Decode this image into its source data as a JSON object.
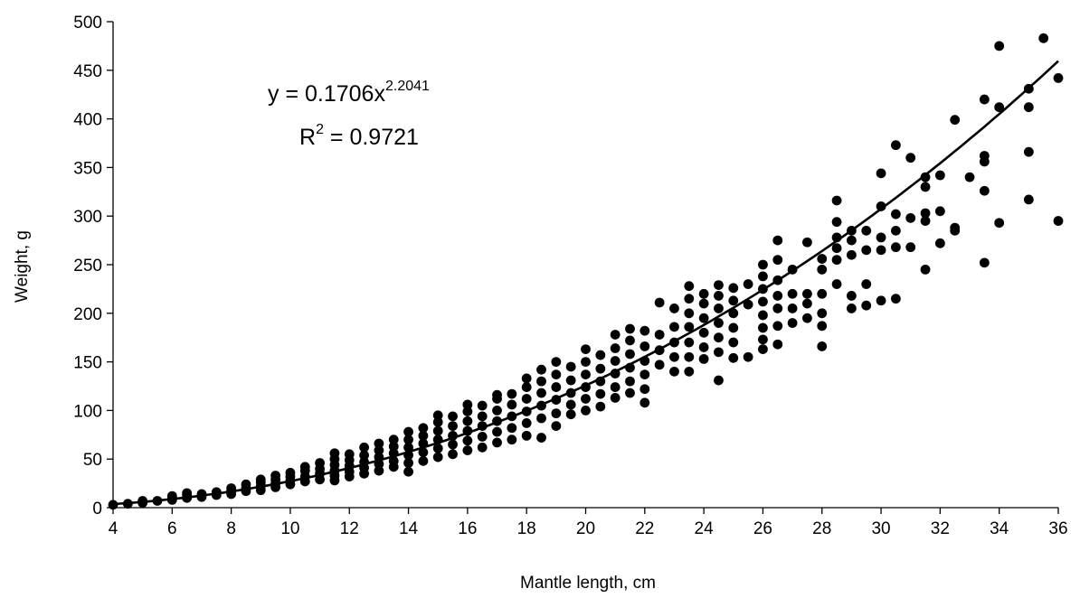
{
  "chart_data": {
    "type": "scatter",
    "xlabel": "Mantle length, cm",
    "ylabel": "Weight, g",
    "xlim": [
      4,
      36
    ],
    "ylim": [
      0,
      500
    ],
    "x_ticks": [
      4,
      6,
      8,
      10,
      12,
      14,
      16,
      18,
      20,
      22,
      24,
      26,
      28,
      30,
      32,
      34,
      36
    ],
    "y_ticks": [
      0,
      50,
      100,
      150,
      200,
      250,
      300,
      350,
      400,
      450,
      500
    ],
    "grid": false,
    "legend": "none",
    "marker_color": "#000000",
    "trendline": {
      "type": "power",
      "a": 0.1706,
      "b": 2.2041,
      "equation_prefix": "y = 0.1706x",
      "equation_exponent": "2.2041",
      "r2_prefix": "R",
      "r2_exponent": "2",
      "r2_suffix": " = 0.9721"
    },
    "points": [
      [
        4,
        3
      ],
      [
        4.5,
        4
      ],
      [
        5,
        5
      ],
      [
        5,
        7
      ],
      [
        5.5,
        7
      ],
      [
        6,
        8
      ],
      [
        6,
        10
      ],
      [
        6,
        12
      ],
      [
        6.5,
        10
      ],
      [
        6.5,
        13
      ],
      [
        6.5,
        15
      ],
      [
        7,
        11
      ],
      [
        7,
        14
      ],
      [
        7.5,
        13
      ],
      [
        7.5,
        16
      ],
      [
        8,
        14
      ],
      [
        8,
        17
      ],
      [
        8,
        20
      ],
      [
        8.5,
        17
      ],
      [
        8.5,
        20
      ],
      [
        8.5,
        24
      ],
      [
        9,
        18
      ],
      [
        9,
        22
      ],
      [
        9,
        26
      ],
      [
        9,
        29
      ],
      [
        9.5,
        21
      ],
      [
        9.5,
        25
      ],
      [
        9.5,
        29
      ],
      [
        9.5,
        33
      ],
      [
        10,
        24
      ],
      [
        10,
        28
      ],
      [
        10,
        32
      ],
      [
        10,
        36
      ],
      [
        10.5,
        27
      ],
      [
        10.5,
        32
      ],
      [
        10.5,
        38
      ],
      [
        10.5,
        42
      ],
      [
        11,
        29
      ],
      [
        11,
        35
      ],
      [
        11,
        40
      ],
      [
        11,
        46
      ],
      [
        11.5,
        28
      ],
      [
        11.5,
        33
      ],
      [
        11.5,
        38
      ],
      [
        11.5,
        44
      ],
      [
        11.5,
        50
      ],
      [
        11.5,
        56
      ],
      [
        12,
        32
      ],
      [
        12,
        37
      ],
      [
        12,
        43
      ],
      [
        12,
        49
      ],
      [
        12,
        55
      ],
      [
        12.5,
        35
      ],
      [
        12.5,
        41
      ],
      [
        12.5,
        47
      ],
      [
        12.5,
        54
      ],
      [
        12.5,
        62
      ],
      [
        13,
        38
      ],
      [
        13,
        45
      ],
      [
        13,
        52
      ],
      [
        13,
        59
      ],
      [
        13,
        66
      ],
      [
        13.5,
        42
      ],
      [
        13.5,
        48
      ],
      [
        13.5,
        56
      ],
      [
        13.5,
        63
      ],
      [
        13.5,
        70
      ],
      [
        14,
        37
      ],
      [
        14,
        46
      ],
      [
        14,
        54
      ],
      [
        14,
        62
      ],
      [
        14,
        70
      ],
      [
        14,
        78
      ],
      [
        14.5,
        48
      ],
      [
        14.5,
        57
      ],
      [
        14.5,
        66
      ],
      [
        14.5,
        74
      ],
      [
        14.5,
        82
      ],
      [
        15,
        52
      ],
      [
        15,
        61
      ],
      [
        15,
        70
      ],
      [
        15,
        79
      ],
      [
        15,
        88
      ],
      [
        15,
        95
      ],
      [
        15.5,
        55
      ],
      [
        15.5,
        65
      ],
      [
        15.5,
        74
      ],
      [
        15.5,
        84
      ],
      [
        15.5,
        94
      ],
      [
        16,
        59
      ],
      [
        16,
        69
      ],
      [
        16,
        79
      ],
      [
        16,
        89
      ],
      [
        16,
        99
      ],
      [
        16,
        106
      ],
      [
        16.5,
        62
      ],
      [
        16.5,
        73
      ],
      [
        16.5,
        84
      ],
      [
        16.5,
        94
      ],
      [
        16.5,
        105
      ],
      [
        17,
        67
      ],
      [
        17,
        78
      ],
      [
        17,
        89
      ],
      [
        17,
        100
      ],
      [
        17,
        112
      ],
      [
        17,
        116
      ],
      [
        17.5,
        70
      ],
      [
        17.5,
        82
      ],
      [
        17.5,
        94
      ],
      [
        17.5,
        106
      ],
      [
        17.5,
        117
      ],
      [
        18,
        74
      ],
      [
        18,
        87
      ],
      [
        18,
        99
      ],
      [
        18,
        112
      ],
      [
        18,
        124
      ],
      [
        18,
        133
      ],
      [
        18.5,
        72
      ],
      [
        18.5,
        92
      ],
      [
        18.5,
        105
      ],
      [
        18.5,
        118
      ],
      [
        18.5,
        130
      ],
      [
        18.5,
        142
      ],
      [
        19,
        84
      ],
      [
        19,
        97
      ],
      [
        19,
        111
      ],
      [
        19,
        124
      ],
      [
        19,
        137
      ],
      [
        19,
        150
      ],
      [
        19.5,
        96
      ],
      [
        19.5,
        106
      ],
      [
        19.5,
        118
      ],
      [
        19.5,
        131
      ],
      [
        19.5,
        145
      ],
      [
        20,
        100
      ],
      [
        20,
        112
      ],
      [
        20,
        124
      ],
      [
        20,
        137
      ],
      [
        20,
        150
      ],
      [
        20,
        163
      ],
      [
        20.5,
        104
      ],
      [
        20.5,
        117
      ],
      [
        20.5,
        130
      ],
      [
        20.5,
        143
      ],
      [
        20.5,
        157
      ],
      [
        21,
        113
      ],
      [
        21,
        124
      ],
      [
        21,
        138
      ],
      [
        21,
        151
      ],
      [
        21,
        164
      ],
      [
        21,
        178
      ],
      [
        21.5,
        118
      ],
      [
        21.5,
        130
      ],
      [
        21.5,
        144
      ],
      [
        21.5,
        158
      ],
      [
        21.5,
        172
      ],
      [
        21.5,
        184
      ],
      [
        22,
        108
      ],
      [
        22,
        122
      ],
      [
        22,
        137
      ],
      [
        22,
        151
      ],
      [
        22,
        166
      ],
      [
        22,
        182
      ],
      [
        22.5,
        147
      ],
      [
        22.5,
        162
      ],
      [
        22.5,
        178
      ],
      [
        22.5,
        211
      ],
      [
        23,
        140
      ],
      [
        23,
        155
      ],
      [
        23,
        170
      ],
      [
        23,
        186
      ],
      [
        23,
        205
      ],
      [
        23.5,
        140
      ],
      [
        23.5,
        155
      ],
      [
        23.5,
        170
      ],
      [
        23.5,
        186
      ],
      [
        23.5,
        200
      ],
      [
        23.5,
        215
      ],
      [
        23.5,
        228
      ],
      [
        24,
        153
      ],
      [
        24,
        165
      ],
      [
        24,
        180
      ],
      [
        24,
        195
      ],
      [
        24,
        210
      ],
      [
        24,
        220
      ],
      [
        24.5,
        131
      ],
      [
        24.5,
        160
      ],
      [
        24.5,
        175
      ],
      [
        24.5,
        190
      ],
      [
        24.5,
        205
      ],
      [
        24.5,
        218
      ],
      [
        24.5,
        229
      ],
      [
        25,
        154
      ],
      [
        25,
        170
      ],
      [
        25,
        185
      ],
      [
        25,
        200
      ],
      [
        25,
        213
      ],
      [
        25,
        226
      ],
      [
        25.5,
        155
      ],
      [
        25.5,
        209
      ],
      [
        25.5,
        230
      ],
      [
        26,
        163
      ],
      [
        26,
        173
      ],
      [
        26,
        185
      ],
      [
        26,
        198
      ],
      [
        26,
        212
      ],
      [
        26,
        225
      ],
      [
        26,
        238
      ],
      [
        26,
        250
      ],
      [
        26.5,
        168
      ],
      [
        26.5,
        187
      ],
      [
        26.5,
        205
      ],
      [
        26.5,
        218
      ],
      [
        26.5,
        234
      ],
      [
        26.5,
        255
      ],
      [
        26.5,
        275
      ],
      [
        27,
        190
      ],
      [
        27,
        205
      ],
      [
        27,
        220
      ],
      [
        27,
        245
      ],
      [
        27.5,
        195
      ],
      [
        27.5,
        210
      ],
      [
        27.5,
        220
      ],
      [
        27.5,
        273
      ],
      [
        28,
        166
      ],
      [
        28,
        187
      ],
      [
        28,
        200
      ],
      [
        28,
        220
      ],
      [
        28,
        245
      ],
      [
        28,
        256
      ],
      [
        28.5,
        230
      ],
      [
        28.5,
        255
      ],
      [
        28.5,
        267
      ],
      [
        28.5,
        278
      ],
      [
        28.5,
        294
      ],
      [
        28.5,
        316
      ],
      [
        29,
        205
      ],
      [
        29,
        218
      ],
      [
        29,
        260
      ],
      [
        29,
        275
      ],
      [
        29,
        285
      ],
      [
        29.5,
        208
      ],
      [
        29.5,
        230
      ],
      [
        29.5,
        265
      ],
      [
        29.5,
        285
      ],
      [
        30,
        213
      ],
      [
        30,
        265
      ],
      [
        30,
        278
      ],
      [
        30,
        310
      ],
      [
        30,
        344
      ],
      [
        30.5,
        215
      ],
      [
        30.5,
        268
      ],
      [
        30.5,
        285
      ],
      [
        30.5,
        302
      ],
      [
        30.5,
        373
      ],
      [
        31,
        268
      ],
      [
        31,
        298
      ],
      [
        31,
        360
      ],
      [
        31.5,
        245
      ],
      [
        31.5,
        295
      ],
      [
        31.5,
        303
      ],
      [
        31.5,
        330
      ],
      [
        31.5,
        340
      ],
      [
        32,
        272
      ],
      [
        32,
        305
      ],
      [
        32,
        342
      ],
      [
        32.5,
        285
      ],
      [
        32.5,
        288
      ],
      [
        32.5,
        399
      ],
      [
        33,
        340
      ],
      [
        33.5,
        252
      ],
      [
        33.5,
        326
      ],
      [
        33.5,
        356
      ],
      [
        33.5,
        362
      ],
      [
        33.5,
        420
      ],
      [
        34,
        293
      ],
      [
        34,
        412
      ],
      [
        34,
        475
      ],
      [
        35,
        317
      ],
      [
        35,
        366
      ],
      [
        35,
        412
      ],
      [
        35,
        431
      ],
      [
        35.5,
        483
      ],
      [
        36,
        295
      ],
      [
        36,
        442
      ]
    ]
  }
}
